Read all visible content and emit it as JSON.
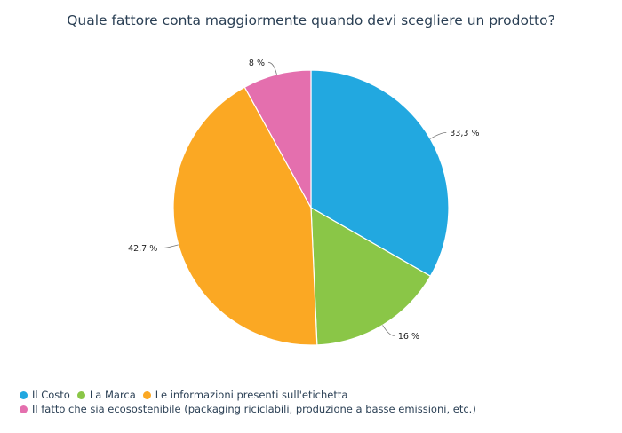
{
  "chart_data": {
    "type": "pie",
    "title": "Quale fattore conta maggiormente quando devi scegliere un prodotto?",
    "series": [
      {
        "name": "Il Costo",
        "value": 33.3,
        "label": "33,3 %",
        "color": "#22a8e0"
      },
      {
        "name": "La Marca",
        "value": 16,
        "label": "16 %",
        "color": "#8ac647"
      },
      {
        "name": "Le informazioni presenti sull'etichetta",
        "value": 42.7,
        "label": "42,7 %",
        "color": "#fba823"
      },
      {
        "name": "Il fatto che sia ecosostenibile (packaging riciclabili, produzione a basse emissioni, etc.)",
        "value": 8,
        "label": "8 %",
        "color": "#e46fae"
      }
    ],
    "legend_placement": "bottom-left"
  }
}
